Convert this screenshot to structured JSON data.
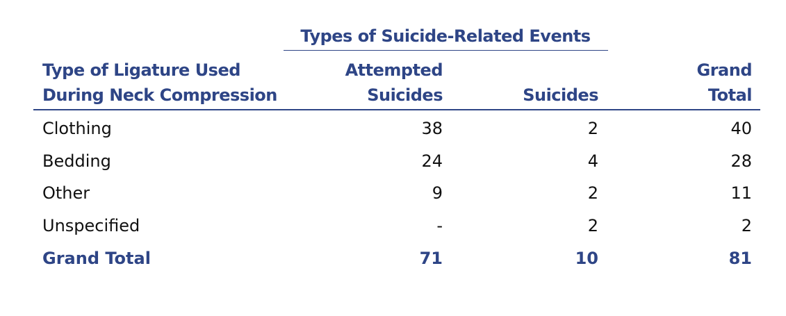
{
  "table": {
    "group_header": "Types of Suicide-Related Events",
    "columns": [
      [
        "Type of Ligature Used",
        "During Neck Compression"
      ],
      [
        "Attempted",
        "Suicides"
      ],
      [
        "Suicides"
      ],
      [
        "Grand",
        "Total"
      ]
    ],
    "rows": [
      [
        "Clothing",
        38,
        2,
        40
      ],
      [
        "Bedding",
        24,
        4,
        28
      ],
      [
        "Other",
        9,
        2,
        11
      ],
      [
        "Unspecified",
        "-",
        2,
        2
      ]
    ],
    "total": [
      "Grand Total",
      71,
      10,
      81
    ]
  }
}
